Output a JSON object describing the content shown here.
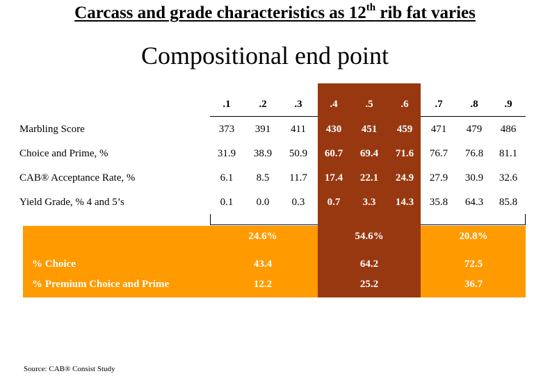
{
  "title": {
    "main": "Carcass and grade characteristics as 12",
    "sup": "th",
    "tail": " rib fat varies"
  },
  "subtitle": "Compositional end point",
  "columns": [
    ".1",
    ".2",
    ".3",
    ".4",
    ".5",
    ".6",
    ".7",
    ".8",
    ".9"
  ],
  "rows": [
    {
      "label": "Marbling Score",
      "values": [
        "373",
        "391",
        "411",
        "430",
        "451",
        "459",
        "471",
        "479",
        "486"
      ]
    },
    {
      "label": "Choice and Prime, %",
      "values": [
        "31.9",
        "38.9",
        "50.9",
        "60.7",
        "69.4",
        "71.6",
        "76.7",
        "76.8",
        "81.1"
      ]
    },
    {
      "label": "CAB® Acceptance Rate, %",
      "values": [
        "6.1",
        "8.5",
        "11.7",
        "17.4",
        "22.1",
        "24.9",
        "27.9",
        "30.9",
        "32.6"
      ]
    },
    {
      "label": "Yield Grade, % 4 and 5’s",
      "values": [
        "0.1",
        "0.0",
        "0.3",
        "0.7",
        "3.3",
        "14.3",
        "35.8",
        "64.3",
        "85.8"
      ]
    }
  ],
  "summary": {
    "shares": [
      "24.6%",
      "54.6%",
      "20.8%"
    ],
    "rows": [
      {
        "label": "% Choice",
        "values": [
          "43.4",
          "64.2",
          "72.5"
        ]
      },
      {
        "label": "% Premium Choice and Prime",
        "values": [
          "12.2",
          "25.2",
          "36.7"
        ]
      }
    ]
  },
  "source": "Source:  CAB® Consist Study",
  "colors": {
    "band": "#983810",
    "orange": "#ff9a00"
  }
}
